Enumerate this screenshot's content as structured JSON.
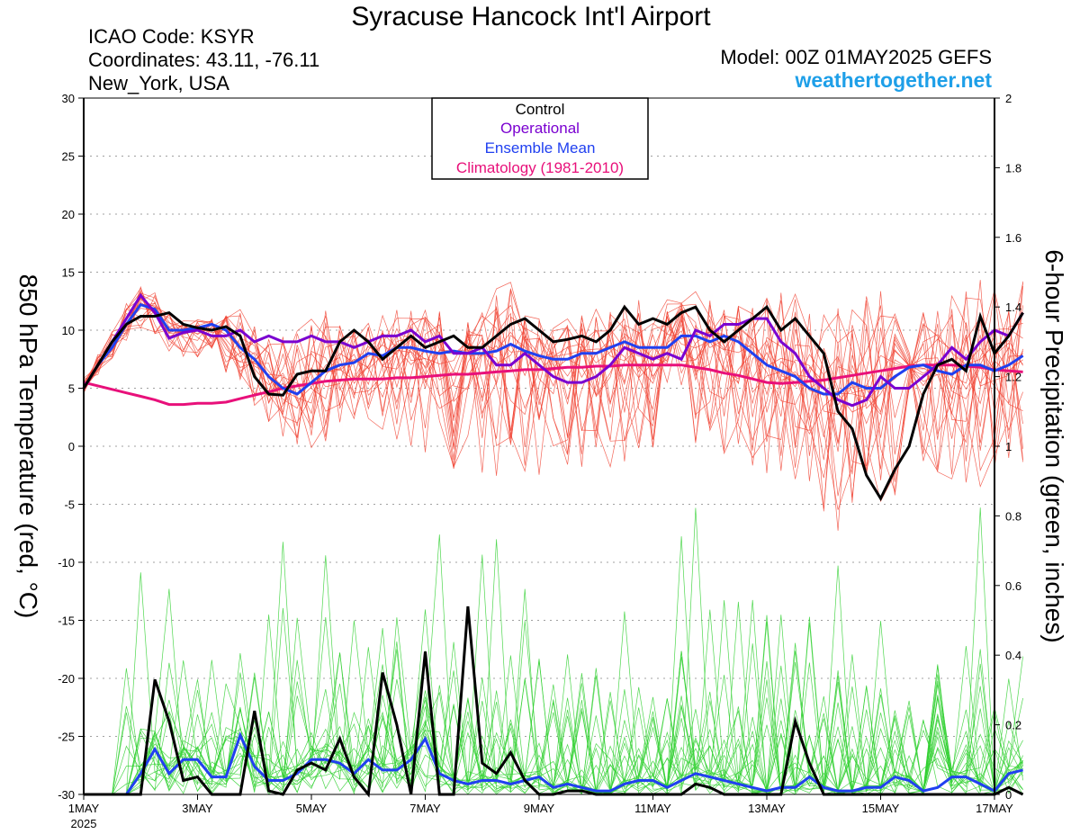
{
  "header": {
    "title": "Syracuse Hancock Int'l Airport",
    "icao": "ICAO Code: KSYR",
    "coords": "Coordinates: 43.11, -76.11",
    "region": "New_York, USA",
    "model": "Model: 00Z 01MAY2025 GEFS",
    "site": "weathertogether.net"
  },
  "colors": {
    "control": "#000000",
    "operational": "#7a00d0",
    "ensemble_mean": "#2040f0",
    "climatology": "#e8107a",
    "members_temp": "#f04030",
    "members_precip": "#30d030",
    "site": "#1e9fe8"
  },
  "chart_data": {
    "type": "line",
    "ylabel_left": "850 hPa Temperature (red, °C)",
    "ylabel_right": "6-hour Precipitation (green, inches)",
    "y_left_range": [
      -30,
      30
    ],
    "y_left_ticks": [
      "30",
      "25",
      "20",
      "15",
      "10",
      "5",
      "0",
      "-5",
      "-10",
      "-15",
      "-20",
      "-25",
      "-30"
    ],
    "y_right_range": [
      0,
      2
    ],
    "y_right_ticks": [
      "2",
      "1.8",
      "1.6",
      "1.4",
      "1.2",
      "1",
      "0.8",
      "0.6",
      "0.4",
      "0.2",
      "0"
    ],
    "x_range_days": [
      0,
      16
    ],
    "x_ticks": [
      "1MAY",
      "3MAY",
      "5MAY",
      "7MAY",
      "9MAY",
      "11MAY",
      "13MAY",
      "15MAY",
      "17MAY"
    ],
    "x_year": "2025",
    "grid": true,
    "legend_position": "top-center",
    "legend": [
      "Control",
      "Operational",
      "Ensemble Mean",
      "Climatology (1981-2010)"
    ],
    "step_days": 0.25,
    "temperature_series": [
      {
        "name": "Control",
        "values": [
          5,
          7,
          9,
          10.5,
          11.2,
          11.2,
          11.5,
          10.5,
          10.2,
          10,
          10.3,
          9.5,
          6,
          4.5,
          4.4,
          6.2,
          6.5,
          6.5,
          9,
          10,
          9,
          7.5,
          8.5,
          9.5,
          8.5,
          9,
          9.5,
          8.5,
          8.5,
          9.5,
          10.5,
          11,
          10,
          9,
          9.2,
          9.5,
          9,
          10,
          12,
          10.5,
          11,
          10.5,
          11.5,
          12,
          10,
          9,
          10,
          11,
          12,
          10,
          11,
          9.5,
          8,
          3,
          1.5,
          -2.5,
          -4.5,
          -2,
          0,
          4.5,
          7,
          7.5,
          6.5,
          11.2,
          8,
          9.5,
          11.5
        ]
      },
      {
        "name": "Operational",
        "values": [
          5,
          7,
          9,
          11,
          13,
          11.5,
          9.3,
          9.8,
          10,
          9.5,
          9.5,
          10,
          9,
          9.5,
          9,
          9,
          9.5,
          9,
          9,
          8.5,
          9,
          9.5,
          9.5,
          10,
          9,
          9.5,
          8,
          8,
          8.5,
          7,
          7,
          8,
          7,
          6,
          5.5,
          5.5,
          6,
          7,
          8.5,
          8,
          7.5,
          8,
          7.5,
          10,
          9.5,
          10.5,
          10.5,
          11,
          11,
          9,
          8,
          6,
          5,
          4,
          3.5,
          4,
          6,
          5,
          5,
          6,
          7,
          8.5,
          7.5,
          9,
          10,
          9.5,
          11.5
        ]
      },
      {
        "name": "Ensemble Mean",
        "values": [
          5,
          7,
          8.5,
          10.5,
          12.2,
          11.8,
          10,
          10,
          10.2,
          10.5,
          10,
          8.5,
          7.5,
          6,
          5,
          4.5,
          5.5,
          6.5,
          7,
          7.2,
          8,
          7.8,
          8.5,
          8.5,
          8.2,
          8,
          8.2,
          8,
          8,
          8.2,
          8.8,
          8.2,
          7.8,
          7.5,
          7.5,
          8,
          8,
          8.5,
          9,
          8.5,
          8.5,
          8.5,
          9.5,
          9.5,
          9,
          9.5,
          9,
          8,
          7,
          6.5,
          6,
          5,
          4.5,
          4.5,
          5.5,
          5,
          5,
          6,
          6.8,
          7,
          6.5,
          6.2,
          7,
          7,
          6.5,
          7,
          7.8
        ]
      },
      {
        "name": "Climatology (1981-2010)",
        "values": [
          5.5,
          5.2,
          4.9,
          4.6,
          4.3,
          4,
          3.6,
          3.6,
          3.7,
          3.7,
          3.8,
          4.1,
          4.4,
          4.7,
          5,
          5.2,
          5.4,
          5.6,
          5.7,
          5.8,
          5.8,
          5.8,
          5.9,
          5.9,
          6,
          6.1,
          6.2,
          6.2,
          6.3,
          6.4,
          6.5,
          6.6,
          6.6,
          6.7,
          6.8,
          6.8,
          6.9,
          6.9,
          7,
          7,
          7,
          7,
          7,
          6.8,
          6.6,
          6.3,
          6.1,
          5.8,
          5.5,
          5.4,
          5.5,
          5.6,
          5.7,
          5.9,
          6.1,
          6.3,
          6.5,
          6.7,
          6.9,
          7,
          7,
          7,
          6.9,
          6.8,
          6.6,
          6.5,
          6.4
        ]
      }
    ],
    "precip_series": [
      {
        "name": "Control",
        "values": [
          0,
          0,
          0,
          0,
          0,
          0.33,
          0.21,
          0.04,
          0.05,
          0,
          0,
          0,
          0.24,
          0.01,
          0,
          0.07,
          0.09,
          0.07,
          0.16,
          0.05,
          0,
          0.35,
          0.2,
          0,
          0.41,
          0,
          0,
          0.54,
          0.09,
          0.06,
          0.12,
          0.04,
          0,
          0,
          0.01,
          0.01,
          0,
          0,
          0,
          0,
          0,
          0,
          0,
          0.03,
          0.02,
          0,
          0,
          0,
          0,
          0,
          0.21,
          0.09,
          0,
          0,
          0,
          0,
          0,
          0,
          0,
          0,
          0,
          0,
          0,
          0,
          0,
          0.02,
          0
        ]
      },
      {
        "name": "Ensemble Mean",
        "values": [
          0,
          0,
          0,
          0,
          0.06,
          0.13,
          0.06,
          0.1,
          0.1,
          0.05,
          0.05,
          0.17,
          0.08,
          0.04,
          0.04,
          0.06,
          0.1,
          0.1,
          0.09,
          0.06,
          0.1,
          0.07,
          0.07,
          0.1,
          0.16,
          0.06,
          0.04,
          0.03,
          0.04,
          0.04,
          0.03,
          0.04,
          0.05,
          0.02,
          0.03,
          0.02,
          0.01,
          0.01,
          0.03,
          0.04,
          0.04,
          0.02,
          0.04,
          0.06,
          0.05,
          0.04,
          0.03,
          0.02,
          0.01,
          0.02,
          0.02,
          0.05,
          0.02,
          0.01,
          0.01,
          0.02,
          0.02,
          0.05,
          0.04,
          0.01,
          0.02,
          0.05,
          0.05,
          0.03,
          0.01,
          0.06,
          0.07
        ]
      }
    ],
    "member_temperature_spread": {
      "upper": [
        6,
        8,
        10,
        12.5,
        14.5,
        13.5,
        12,
        11,
        11,
        11,
        11.5,
        12,
        11,
        10,
        10,
        11,
        11.5,
        12,
        12,
        11,
        11,
        11.5,
        12,
        12,
        12.5,
        12,
        11.5,
        11,
        12,
        14,
        15.5,
        13,
        12,
        11.5,
        11.5,
        12,
        12,
        12,
        12.5,
        13,
        12.5,
        13,
        13.5,
        14,
        13,
        12.5,
        13,
        13.5,
        14,
        14,
        13.5,
        13,
        12.5,
        13,
        13,
        14,
        14.5,
        14,
        13,
        12.5,
        13,
        14,
        14.5,
        15,
        14.5,
        14,
        15
      ],
      "lower": [
        4.5,
        6,
        7.5,
        9,
        10,
        9,
        8,
        7.5,
        7,
        6.5,
        6,
        5,
        3,
        1.5,
        0.5,
        -0.5,
        -1,
        0,
        0.5,
        1,
        1,
        0.5,
        0,
        -1,
        -1,
        -2,
        -2.5,
        -3,
        -3,
        -4,
        -4,
        -3,
        -3,
        -3.5,
        -4,
        -3.5,
        -3,
        -3,
        -2,
        -1.5,
        -1.5,
        -1,
        -1,
        -0.5,
        -1,
        -1.5,
        -2,
        -2.5,
        -3,
        -3,
        -3.5,
        -5,
        -7,
        -8.5,
        -8,
        -7,
        -6,
        -5,
        -4,
        -3,
        -3.5,
        -4,
        -5,
        -5.5,
        -5,
        -4,
        -2.5
      ]
    },
    "member_precip_peaks": [
      0.5,
      0.6,
      0.5,
      0.75,
      0.5,
      0.4,
      0.6,
      0.75,
      0.97,
      0.55,
      0.55,
      0.5,
      0.4,
      0.45,
      0.3,
      0.4,
      0.35,
      0.45,
      0.3,
      0.4,
      0.35,
      0.4,
      0.45,
      0.35,
      0.5,
      0.4,
      0.35,
      0.45,
      1.02
    ]
  }
}
